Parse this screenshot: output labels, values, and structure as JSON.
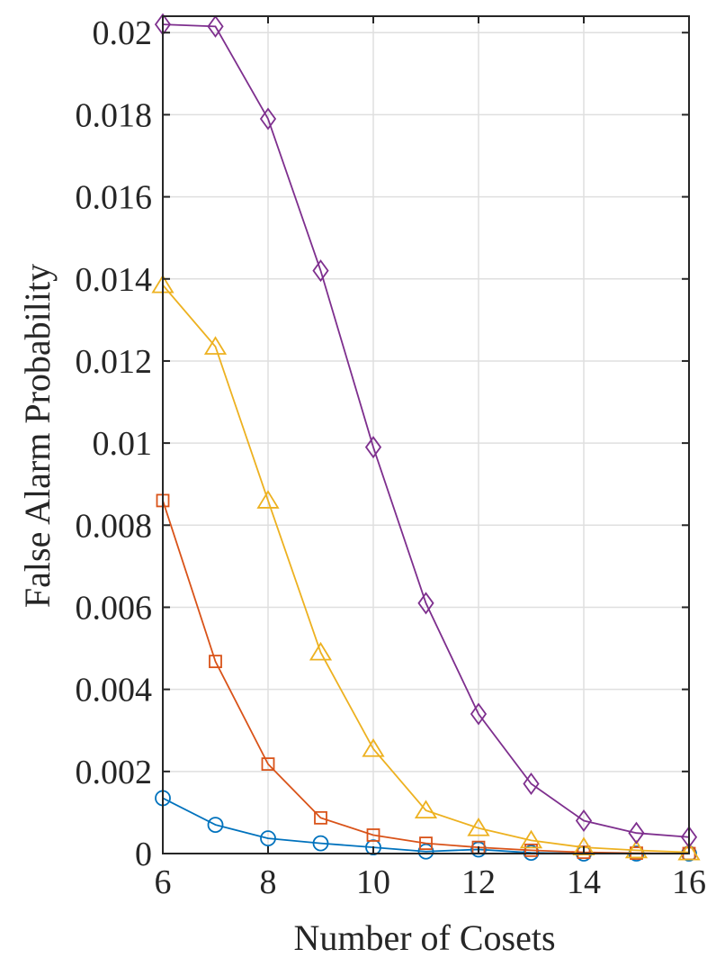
{
  "chart_data": {
    "type": "line",
    "xlabel": "Number of Cosets",
    "ylabel": "False Alarm Probability",
    "xlim": [
      6,
      16
    ],
    "ylim": [
      0,
      0.0204
    ],
    "grid": true,
    "x_ticks": [
      6,
      8,
      10,
      12,
      14,
      16
    ],
    "y_ticks": [
      0,
      0.002,
      0.004,
      0.006,
      0.008,
      0.01,
      0.012,
      0.014,
      0.016,
      0.018,
      0.02
    ],
    "y_tick_labels": [
      "0",
      "0.002",
      "0.004",
      "0.006",
      "0.008",
      "0.01",
      "0.012",
      "0.014",
      "0.016",
      "0.018",
      "0.02"
    ],
    "x": [
      6,
      7,
      8,
      9,
      10,
      11,
      12,
      13,
      14,
      15,
      16
    ],
    "series": [
      {
        "marker": "circle",
        "color": "#0072bd",
        "values": [
          0.00135,
          0.0007,
          0.00037,
          0.00025,
          0.00015,
          5e-05,
          0.0001,
          2e-05,
          0.0,
          0.0,
          0.0
        ]
      },
      {
        "marker": "square",
        "color": "#d95319",
        "values": [
          0.0086,
          0.00468,
          0.00218,
          0.00087,
          0.00045,
          0.00025,
          0.00015,
          8e-05,
          3e-05,
          1e-05,
          0.0
        ]
      },
      {
        "marker": "triangle",
        "color": "#edb120",
        "values": [
          0.01385,
          0.01235,
          0.0086,
          0.0049,
          0.00255,
          0.00105,
          0.00062,
          0.00032,
          0.00015,
          8e-05,
          3e-05
        ]
      },
      {
        "marker": "diamond",
        "color": "#7e2f8e",
        "values": [
          0.0202,
          0.02015,
          0.0179,
          0.0142,
          0.0099,
          0.0061,
          0.0034,
          0.0017,
          0.0008,
          0.0005,
          0.0004
        ]
      }
    ]
  }
}
